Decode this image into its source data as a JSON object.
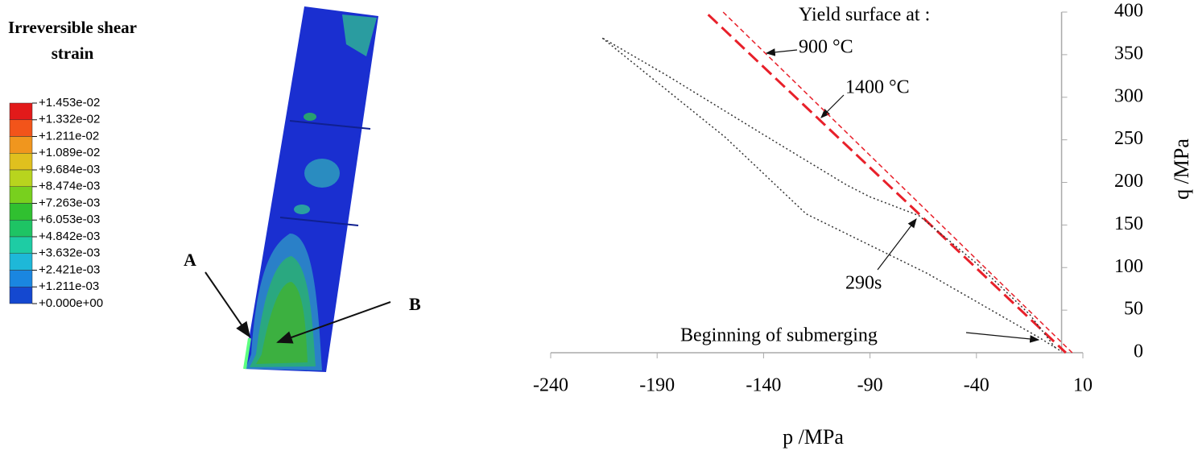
{
  "contour": {
    "title": "Irreversible shear strain",
    "levels": [
      "+1.453e-02",
      "+1.332e-02",
      "+1.211e-02",
      "+1.089e-02",
      "+9.684e-03",
      "+8.474e-03",
      "+7.263e-03",
      "+6.053e-03",
      "+4.842e-03",
      "+3.632e-03",
      "+2.421e-03",
      "+1.211e-03",
      "+0.000e+00"
    ],
    "colors": [
      "#e21a1a",
      "#f2541a",
      "#f0961e",
      "#e0c01e",
      "#b8d41e",
      "#78d01e",
      "#30c030",
      "#1ec464",
      "#1ecca4",
      "#1eb8d8",
      "#1a86e0",
      "#1448d0"
    ],
    "markers": [
      "A",
      "B"
    ]
  },
  "chart_data": {
    "type": "line",
    "xlabel": "p /MPa",
    "ylabel": "q /MPa",
    "xlim": [
      -240,
      10
    ],
    "xticks": [
      -240,
      -190,
      -140,
      -90,
      -40,
      10
    ],
    "ylim": [
      0,
      400
    ],
    "yticks": [
      0,
      50,
      100,
      150,
      200,
      250,
      300,
      350,
      400
    ],
    "series": [
      {
        "name": "900 °C",
        "color": "#e8202a",
        "dash": "6,4",
        "width": 1.5,
        "x": [
          -159,
          5
        ],
        "values": [
          400,
          0
        ]
      },
      {
        "name": "1400 °C",
        "color": "#e8202a",
        "dash": "16,7",
        "width": 3,
        "x": [
          -166,
          2
        ],
        "values": [
          397,
          0
        ]
      },
      {
        "name": "290s",
        "color": "#333333",
        "dash": "2,3",
        "width": 1.5,
        "x": [
          -1,
          -10,
          -63,
          -120,
          -158,
          -216,
          -185,
          -140,
          -101,
          -90,
          -67,
          -40,
          -15,
          -3
        ],
        "values": [
          3,
          17,
          93,
          163,
          253,
          370,
          325,
          256,
          197,
          183,
          161,
          105,
          45,
          6
        ]
      }
    ],
    "annotations": [
      "Yield surface at :",
      "900 °C",
      "1400 °C",
      "290s",
      "Beginning of submerging"
    ]
  }
}
